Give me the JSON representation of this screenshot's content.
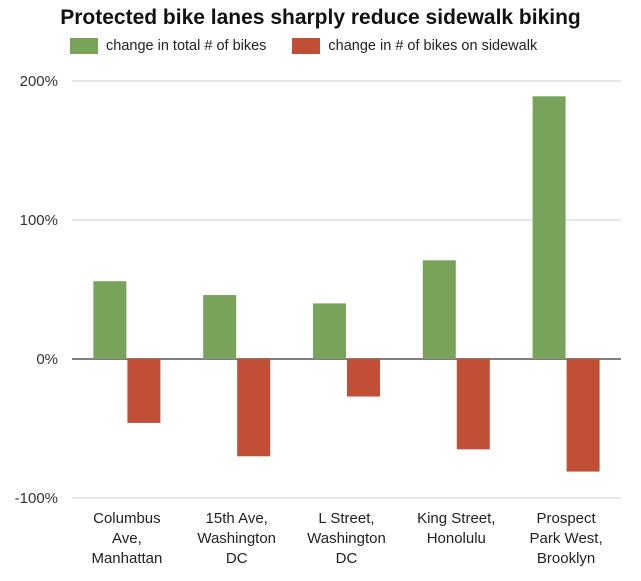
{
  "chart_data": {
    "type": "bar",
    "title": "Protected bike lanes sharply reduce sidewalk biking",
    "categories": [
      [
        "Columbus",
        "Ave,",
        "Manhattan"
      ],
      [
        "15th Ave,",
        "Washington",
        "DC"
      ],
      [
        "L Street,",
        "Washington",
        "DC"
      ],
      [
        "King Street,",
        "Honolulu"
      ],
      [
        "Prospect",
        "Park West,",
        "Brooklyn"
      ]
    ],
    "series": [
      {
        "name": "change in total # of bikes",
        "color": "#79a35a",
        "values": [
          56,
          46,
          40,
          71,
          189
        ]
      },
      {
        "name": "change in # of bikes on sidewalk",
        "color": "#c04f35",
        "values": [
          -46,
          -70,
          -27,
          -65,
          -81
        ]
      }
    ],
    "ylim": [
      -100,
      200
    ],
    "yticks": [
      -100,
      0,
      100,
      200
    ],
    "ytick_labels": [
      "-100%",
      "0%",
      "100%",
      "200%"
    ],
    "legend_position": "top",
    "grid": true,
    "xlabel": "",
    "ylabel": ""
  }
}
